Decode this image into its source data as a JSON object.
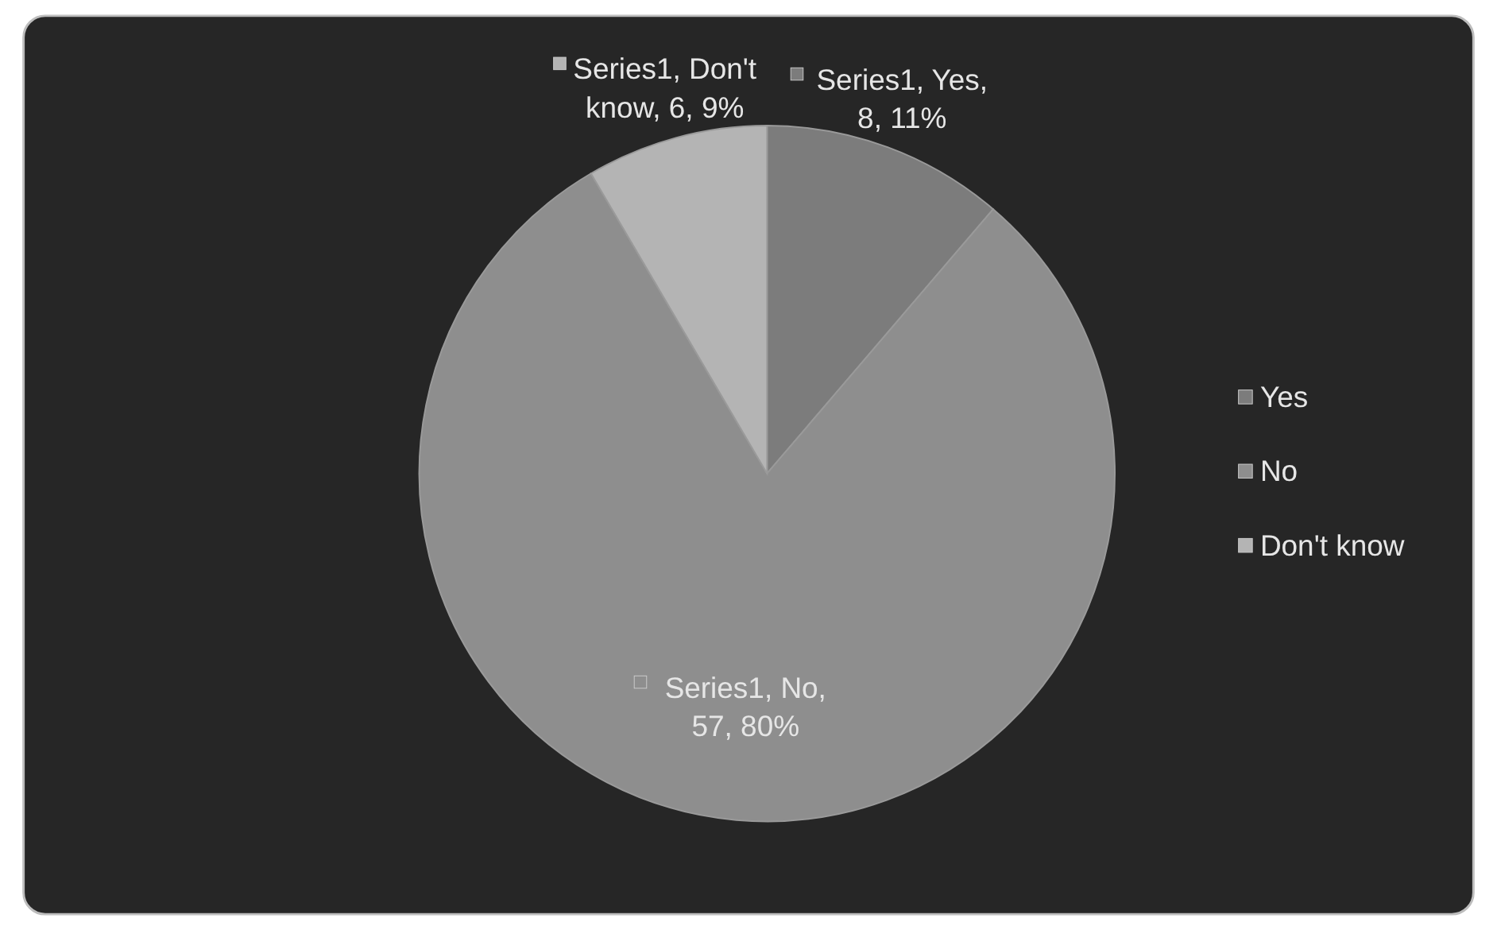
{
  "chart_data": {
    "type": "pie",
    "categories": [
      "Yes",
      "No",
      "Don't know"
    ],
    "values": [
      8,
      57,
      6
    ],
    "colors": [
      "#7c7c7c",
      "#8e8e8e",
      "#b4b4b4"
    ],
    "value_labels": [
      "Series1, Yes, 8, 11%",
      "Series1, No, 57, 80%",
      "Series1, Don't know, 6, 9%"
    ],
    "legend": "right"
  }
}
